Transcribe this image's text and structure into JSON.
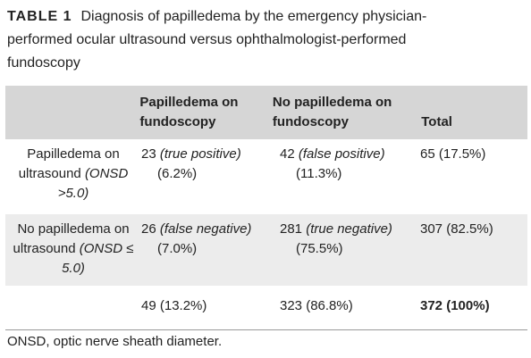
{
  "caption": {
    "label": "TABLE 1",
    "text": "Diagnosis of papilledema by the emergency physician-performed ocular ultrasound versus ophthalmologist-performed fundoscopy"
  },
  "table": {
    "header": [
      "Papilledema on fundoscopy",
      "No papilledema on fundoscopy",
      "Total"
    ],
    "rows": [
      {
        "label": "Papilledema on ultrasound",
        "criterion": "(ONSD >5.0)",
        "cells": [
          {
            "count": "23",
            "note": "(true positive)",
            "percent": "(6.2%)"
          },
          {
            "count": "42",
            "note": "(false positive)",
            "percent": "(11.3%)"
          },
          {
            "count": "65",
            "percent": "(17.5%)"
          }
        ]
      },
      {
        "label": "No papilledema on ultrasound",
        "criterion": "(ONSD ≤ 5.0)",
        "cells": [
          {
            "count": "26",
            "note": "(false negative)",
            "percent": "(7.0%)"
          },
          {
            "count": "281",
            "note": "(true negative)",
            "percent": "(75.5%)"
          },
          {
            "count": "307",
            "percent": "(82.5%)"
          }
        ]
      },
      {
        "cells": [
          {
            "count": "49",
            "percent": "(13.2%)"
          },
          {
            "count": "323",
            "percent": "(86.8%)"
          },
          {
            "count": "372",
            "percent": "(100%)"
          }
        ]
      }
    ]
  },
  "footnote": "ONSD, optic nerve sheath diameter."
}
